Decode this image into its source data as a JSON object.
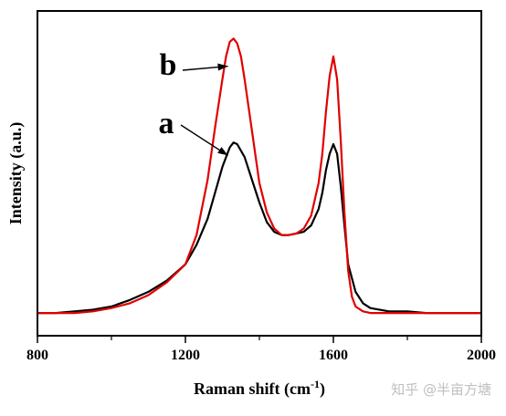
{
  "chart_data": {
    "type": "line",
    "title": "",
    "xlabel": "Raman shift (cm",
    "xlabel_sup": "-1",
    "xlabel_end": ")",
    "ylabel": "Intensity (a.u.)",
    "xlim": [
      800,
      2000
    ],
    "ylim": [
      0,
      1.0
    ],
    "x_ticks": [
      800,
      1200,
      1600,
      2000
    ],
    "x_tick_labels": [
      "800",
      "1200",
      "1600",
      "2000"
    ],
    "x_minor_ticks": [
      1000,
      1400,
      1800
    ],
    "y_ticks_shown": false,
    "grid": false,
    "legend": "none",
    "colors": {
      "a": "#000000",
      "b": "#e00000"
    },
    "series": [
      {
        "name": "a",
        "color": "#000000",
        "x": [
          800,
          850,
          900,
          950,
          1000,
          1050,
          1100,
          1150,
          1200,
          1230,
          1260,
          1280,
          1300,
          1320,
          1330,
          1340,
          1360,
          1380,
          1400,
          1420,
          1440,
          1460,
          1480,
          1500,
          1520,
          1540,
          1560,
          1570,
          1580,
          1590,
          1600,
          1610,
          1620,
          1630,
          1640,
          1660,
          1680,
          1700,
          1750,
          1800,
          1850,
          1900,
          1950,
          2000
        ],
        "y": [
          0.07,
          0.07,
          0.075,
          0.08,
          0.09,
          0.11,
          0.135,
          0.17,
          0.22,
          0.28,
          0.36,
          0.44,
          0.52,
          0.58,
          0.595,
          0.59,
          0.55,
          0.48,
          0.41,
          0.35,
          0.32,
          0.31,
          0.31,
          0.315,
          0.32,
          0.34,
          0.39,
          0.44,
          0.51,
          0.56,
          0.59,
          0.56,
          0.46,
          0.34,
          0.22,
          0.135,
          0.1,
          0.085,
          0.075,
          0.075,
          0.07,
          0.07,
          0.07,
          0.07
        ]
      },
      {
        "name": "b",
        "color": "#e00000",
        "x": [
          800,
          850,
          900,
          950,
          1000,
          1050,
          1100,
          1150,
          1200,
          1230,
          1260,
          1280,
          1300,
          1310,
          1320,
          1330,
          1340,
          1350,
          1360,
          1380,
          1400,
          1420,
          1440,
          1460,
          1480,
          1500,
          1520,
          1540,
          1560,
          1570,
          1580,
          1590,
          1600,
          1610,
          1620,
          1630,
          1640,
          1650,
          1660,
          1680,
          1700,
          1750,
          1800,
          1850,
          1900,
          1950,
          2000
        ],
        "y": [
          0.07,
          0.07,
          0.07,
          0.075,
          0.085,
          0.1,
          0.125,
          0.165,
          0.22,
          0.31,
          0.48,
          0.64,
          0.79,
          0.86,
          0.905,
          0.915,
          0.9,
          0.86,
          0.79,
          0.63,
          0.47,
          0.38,
          0.33,
          0.31,
          0.31,
          0.315,
          0.33,
          0.37,
          0.47,
          0.56,
          0.69,
          0.8,
          0.86,
          0.79,
          0.6,
          0.38,
          0.2,
          0.12,
          0.09,
          0.075,
          0.07,
          0.07,
          0.07,
          0.07,
          0.07,
          0.07,
          0.07
        ]
      }
    ],
    "annotations": [
      {
        "text": "b",
        "series": "b",
        "arrow_to": [
          1315,
          0.83
        ]
      },
      {
        "text": "a",
        "series": "a",
        "arrow_to": [
          1315,
          0.555
        ]
      }
    ]
  },
  "watermark": "知乎 @半亩方塘"
}
